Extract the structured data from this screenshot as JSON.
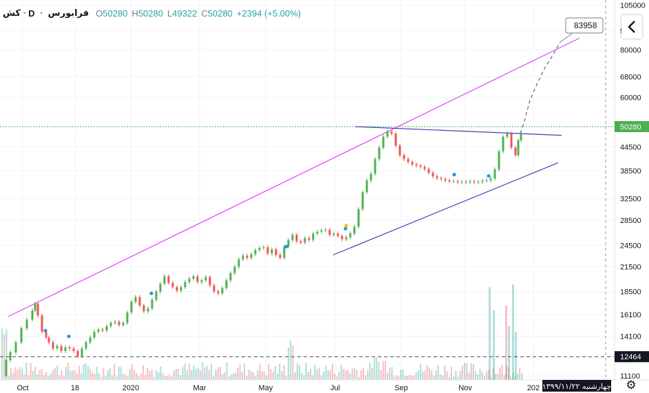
{
  "legend": {
    "symbol": "کش",
    "timeframe": "D",
    "name": "فرابورس",
    "open_label": "O",
    "open": "50280",
    "high_label": "H",
    "high": "50280",
    "low_label": "L",
    "low": "49322",
    "close_label": "C",
    "close": "50280",
    "change": "+2394 (+5.00%)"
  },
  "toolbar": {
    "back_icon": "chevron-left-icon",
    "settings_icon": "gear-icon"
  },
  "colors": {
    "up": "#26a69a",
    "up_bright": "#4caf50",
    "down": "#ef5350",
    "resistance_line": "#e040fb",
    "channel_lines": "#3f3fb5",
    "price_line": "#4caf50",
    "dots": "#2196f3",
    "dot_yellow": "#ffc107",
    "projection": "#434651"
  },
  "chart_data": {
    "type": "candlestick",
    "scale": "log",
    "y_ticks": [
      11100,
      12464,
      14100,
      16100,
      18500,
      21500,
      24500,
      28500,
      32500,
      38500,
      44500,
      50280,
      60000,
      68000,
      80000,
      90000,
      105000
    ],
    "x_ticks": [
      "Oct",
      "18",
      "2020",
      "Mar",
      "May",
      "Jul",
      "Sep",
      "Nov",
      "202"
    ],
    "last_price": 50280,
    "level_marker": 12464,
    "projection_target": 83958,
    "projection_label": "83958",
    "date_label": "چهارشنبه ۱۳۹۹/۱۱/۲۲",
    "price_path": [
      [
        0,
        11100
      ],
      [
        8,
        12200
      ],
      [
        14,
        12800
      ],
      [
        22,
        13600
      ],
      [
        30,
        14800
      ],
      [
        38,
        15600
      ],
      [
        46,
        16500
      ],
      [
        50,
        17200
      ],
      [
        54,
        16000
      ],
      [
        60,
        14500
      ],
      [
        66,
        14000
      ],
      [
        70,
        13600
      ],
      [
        76,
        13100
      ],
      [
        82,
        13300
      ],
      [
        88,
        12900
      ],
      [
        94,
        13200
      ],
      [
        100,
        13100
      ],
      [
        106,
        12900
      ],
      [
        112,
        12500
      ],
      [
        118,
        13100
      ],
      [
        124,
        13600
      ],
      [
        130,
        14000
      ],
      [
        136,
        14500
      ],
      [
        142,
        14700
      ],
      [
        148,
        14600
      ],
      [
        154,
        15000
      ],
      [
        160,
        15300
      ],
      [
        166,
        15400
      ],
      [
        172,
        15100
      ],
      [
        178,
        15300
      ],
      [
        184,
        16300
      ],
      [
        190,
        17400
      ],
      [
        196,
        17900
      ],
      [
        202,
        17000
      ],
      [
        208,
        16400
      ],
      [
        214,
        16700
      ],
      [
        220,
        17600
      ],
      [
        226,
        18500
      ],
      [
        232,
        19400
      ],
      [
        238,
        20300
      ],
      [
        244,
        19500
      ],
      [
        250,
        19000
      ],
      [
        256,
        18600
      ],
      [
        262,
        19000
      ],
      [
        268,
        19600
      ],
      [
        274,
        20000
      ],
      [
        280,
        20300
      ],
      [
        286,
        19600
      ],
      [
        292,
        19800
      ],
      [
        298,
        20200
      ],
      [
        304,
        19200
      ],
      [
        310,
        18500
      ],
      [
        316,
        18300
      ],
      [
        322,
        18900
      ],
      [
        328,
        19800
      ],
      [
        334,
        20700
      ],
      [
        340,
        21500
      ],
      [
        346,
        22500
      ],
      [
        352,
        23000
      ],
      [
        358,
        22700
      ],
      [
        364,
        23200
      ],
      [
        370,
        23800
      ],
      [
        376,
        24100
      ],
      [
        382,
        24200
      ],
      [
        388,
        23300
      ],
      [
        394,
        23900
      ],
      [
        400,
        23100
      ],
      [
        406,
        22700
      ],
      [
        412,
        24300
      ],
      [
        418,
        25300
      ],
      [
        424,
        26100
      ],
      [
        430,
        25100
      ],
      [
        436,
        24900
      ],
      [
        442,
        25600
      ],
      [
        448,
        25300
      ],
      [
        454,
        26300
      ],
      [
        460,
        26600
      ],
      [
        466,
        26800
      ],
      [
        472,
        26900
      ],
      [
        478,
        26100
      ],
      [
        484,
        26300
      ],
      [
        490,
        25900
      ],
      [
        496,
        25400
      ],
      [
        502,
        25700
      ],
      [
        508,
        26300
      ],
      [
        514,
        27400
      ],
      [
        520,
        30500
      ],
      [
        526,
        33800
      ],
      [
        532,
        36300
      ],
      [
        538,
        37800
      ],
      [
        544,
        41300
      ],
      [
        550,
        44300
      ],
      [
        556,
        47300
      ],
      [
        562,
        48800
      ],
      [
        568,
        48200
      ],
      [
        574,
        44800
      ],
      [
        580,
        42300
      ],
      [
        586,
        41300
      ],
      [
        592,
        40600
      ],
      [
        598,
        40000
      ],
      [
        604,
        39700
      ],
      [
        610,
        39400
      ],
      [
        616,
        38900
      ],
      [
        622,
        38000
      ],
      [
        628,
        37200
      ],
      [
        634,
        36800
      ],
      [
        640,
        36600
      ],
      [
        646,
        36300
      ],
      [
        652,
        36100
      ],
      [
        658,
        36100
      ],
      [
        664,
        35900
      ],
      [
        670,
        36000
      ],
      [
        676,
        35900
      ],
      [
        682,
        36100
      ],
      [
        688,
        35900
      ],
      [
        694,
        36000
      ],
      [
        700,
        36200
      ],
      [
        706,
        36300
      ],
      [
        712,
        36700
      ],
      [
        718,
        38800
      ],
      [
        724,
        43300
      ],
      [
        730,
        47300
      ],
      [
        736,
        48300
      ],
      [
        742,
        44300
      ],
      [
        748,
        42300
      ],
      [
        752,
        46300
      ],
      [
        756,
        48300
      ]
    ],
    "projection_path": [
      [
        756,
        48300
      ],
      [
        762,
        52000
      ],
      [
        770,
        59000
      ],
      [
        780,
        65000
      ],
      [
        792,
        72000
      ],
      [
        804,
        78000
      ],
      [
        814,
        83958
      ]
    ],
    "resistance_line": [
      [
        12,
        15900
      ],
      [
        842,
        86000
      ]
    ],
    "top_channel": [
      [
        516,
        50280
      ],
      [
        816,
        47700
      ]
    ],
    "bottom_channel": [
      [
        484,
        23100
      ],
      [
        811,
        40400
      ]
    ],
    "dots": [
      [
        66,
        14600
      ],
      [
        100,
        14100
      ],
      [
        220,
        18300
      ],
      [
        416,
        24300
      ],
      [
        502,
        27100
      ],
      [
        660,
        37600
      ],
      [
        710,
        37300
      ]
    ],
    "dot_yellow": [
      503,
      27600
    ],
    "volume_spikes": [
      [
        710,
        19000
      ],
      [
        716,
        16500
      ],
      [
        734,
        17000
      ],
      [
        738,
        15000
      ],
      [
        744,
        19300
      ],
      [
        748,
        14500
      ]
    ]
  }
}
